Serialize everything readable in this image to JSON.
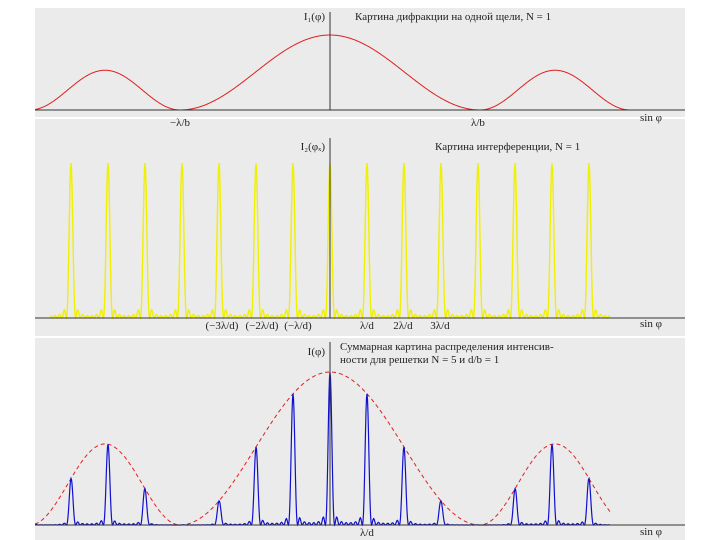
{
  "panels": [
    {
      "ylabel": "I₁(φ)",
      "title": [
        "Картина дифракции на одной щели, N = 1"
      ],
      "x_labels": [
        "−λ/b",
        "λ/b"
      ],
      "axis_label": "sin φ"
    },
    {
      "ylabel": "I₂(φₓ)",
      "title": [
        "Картина интерференции, N = 1"
      ],
      "x_labels": [
        "(−3λ/d)",
        "(−2λ/d)",
        "(−λ/d)",
        "λ/d",
        "2λ/d",
        "3λ/d"
      ],
      "axis_label": "sin φ"
    },
    {
      "ylabel": "I(φ)",
      "title": [
        "Суммарная картина распределения интенсив-",
        "ности для решетки N = 5 и d/b = 1"
      ],
      "x_labels": [
        "λ/d"
      ],
      "axis_label": "sin φ"
    }
  ]
}
